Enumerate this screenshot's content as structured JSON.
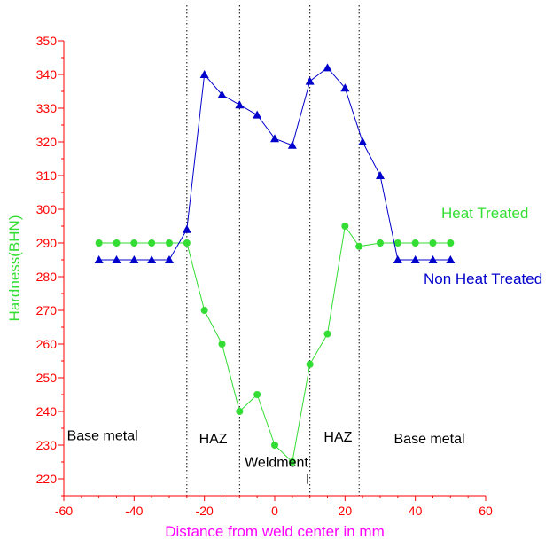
{
  "chart_data": {
    "type": "line",
    "title": "",
    "xlabel": "Distance from weld center in mm",
    "ylabel": "Hardness(BHN)",
    "xlim": [
      -60,
      60
    ],
    "ylim": [
      215,
      350
    ],
    "x_ticks": [
      -60,
      -40,
      -20,
      0,
      20,
      40,
      60
    ],
    "y_ticks": [
      220,
      230,
      240,
      250,
      260,
      270,
      280,
      290,
      300,
      310,
      320,
      330,
      340,
      350
    ],
    "grid": false,
    "legend": "right, next to series",
    "series": [
      {
        "name": "Heat Treated",
        "color": "#33dd33",
        "marker": "circle",
        "points": [
          [
            -50,
            290
          ],
          [
            -45,
            290
          ],
          [
            -40,
            290
          ],
          [
            -35,
            290
          ],
          [
            -30,
            290
          ],
          [
            -25,
            290
          ],
          [
            -20,
            270
          ],
          [
            -15,
            260
          ],
          [
            -10,
            240
          ],
          [
            -5,
            245
          ],
          [
            0,
            230
          ],
          [
            5,
            225
          ],
          [
            10,
            254
          ],
          [
            15,
            263
          ],
          [
            20,
            295
          ],
          [
            24,
            289
          ],
          [
            30,
            290
          ],
          [
            35,
            290
          ],
          [
            40,
            290
          ],
          [
            45,
            290
          ],
          [
            50,
            290
          ]
        ]
      },
      {
        "name": "Non Heat Treated",
        "color": "#0000cc",
        "marker": "triangle",
        "points": [
          [
            -50,
            285
          ],
          [
            -45,
            285
          ],
          [
            -40,
            285
          ],
          [
            -35,
            285
          ],
          [
            -30,
            285
          ],
          [
            -25,
            294
          ],
          [
            -20,
            340
          ],
          [
            -15,
            334
          ],
          [
            -10,
            331
          ],
          [
            -5,
            328
          ],
          [
            0,
            321
          ],
          [
            5,
            319
          ],
          [
            10,
            338
          ],
          [
            15,
            342
          ],
          [
            20,
            336
          ],
          [
            25,
            320
          ],
          [
            30,
            310
          ],
          [
            35,
            285
          ],
          [
            40,
            285
          ],
          [
            45,
            285
          ],
          [
            50,
            285
          ]
        ]
      }
    ],
    "dividers_x": [
      -25,
      -10,
      10,
      24
    ],
    "annotations": [
      {
        "text": "Base metal",
        "x": -49,
        "y": 231.5
      },
      {
        "text": "HAZ",
        "x": -17.5,
        "y": 230.5
      },
      {
        "text": "Weldment",
        "x": 0.5,
        "y": 223.5
      },
      {
        "text": "HAZ",
        "x": 18,
        "y": 231
      },
      {
        "text": "Base metal",
        "x": 44,
        "y": 230.5
      }
    ]
  }
}
